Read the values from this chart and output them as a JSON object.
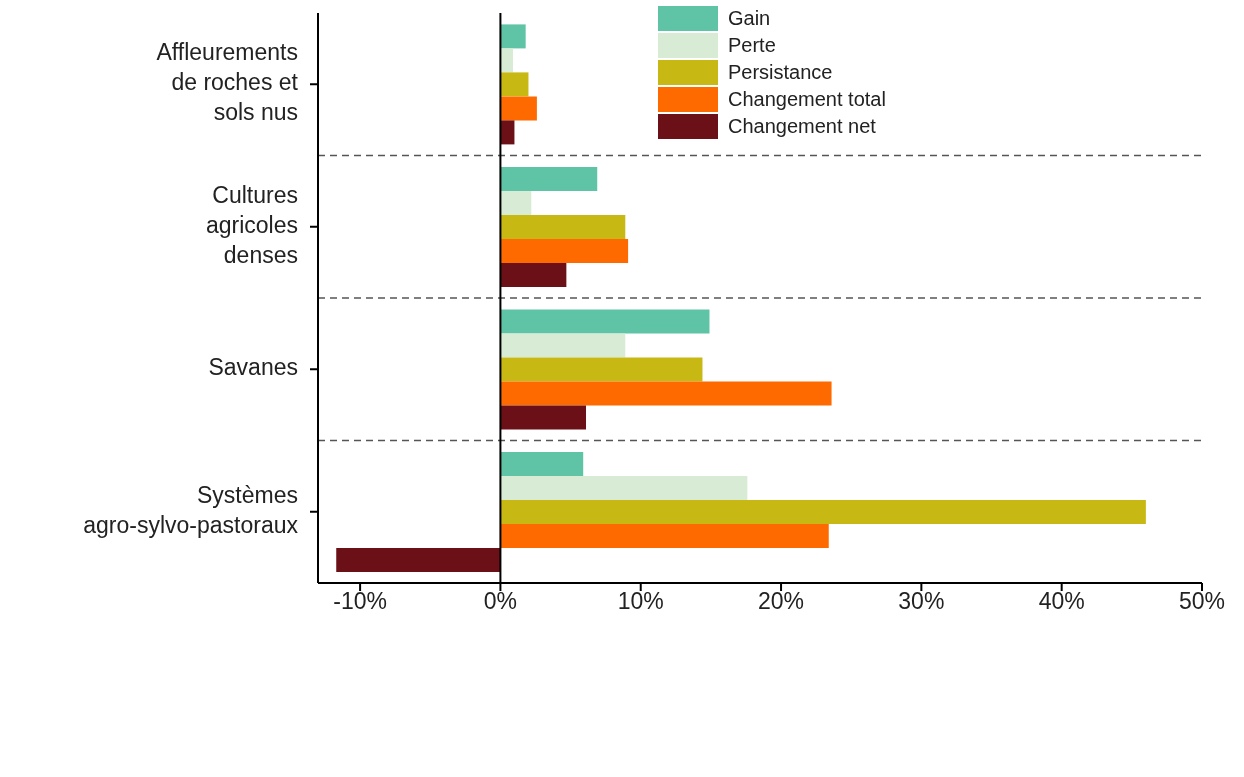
{
  "chart_data": {
    "type": "bar",
    "orientation": "horizontal",
    "categories": [
      "Affleurements de roches et sols nus",
      "Cultures agricoles denses",
      "Savanes",
      "Systèmes agro-sylvo-pastoraux"
    ],
    "series": [
      {
        "name": "Gain",
        "color": "#5fc4a6",
        "values": [
          1.8,
          6.9,
          14.9,
          5.9
        ]
      },
      {
        "name": "Perte",
        "color": "#d8ecd5",
        "values": [
          0.9,
          2.2,
          8.9,
          17.6
        ]
      },
      {
        "name": "Persistance",
        "color": "#c8b813",
        "values": [
          2.0,
          8.9,
          14.4,
          46.0
        ]
      },
      {
        "name": "Changement total",
        "color": "#ff6a00",
        "values": [
          2.6,
          9.1,
          23.6,
          23.4
        ]
      },
      {
        "name": "Changement net",
        "color": "#6b1016",
        "values": [
          1.0,
          4.7,
          6.1,
          -11.7
        ]
      }
    ],
    "xlim": [
      -13,
      50
    ],
    "xticks": [
      {
        "value": -10,
        "label": "-10%"
      },
      {
        "value": 0,
        "label": "0%"
      },
      {
        "value": 10,
        "label": "10%"
      },
      {
        "value": 20,
        "label": "20%"
      },
      {
        "value": 30,
        "label": "30%"
      },
      {
        "value": 40,
        "label": "40%"
      },
      {
        "value": 50,
        "label": "50%"
      }
    ],
    "ref_lines": [
      {
        "axis": "x",
        "value": 0,
        "color": "#000000"
      }
    ],
    "grid": "y",
    "legend": "top right"
  }
}
